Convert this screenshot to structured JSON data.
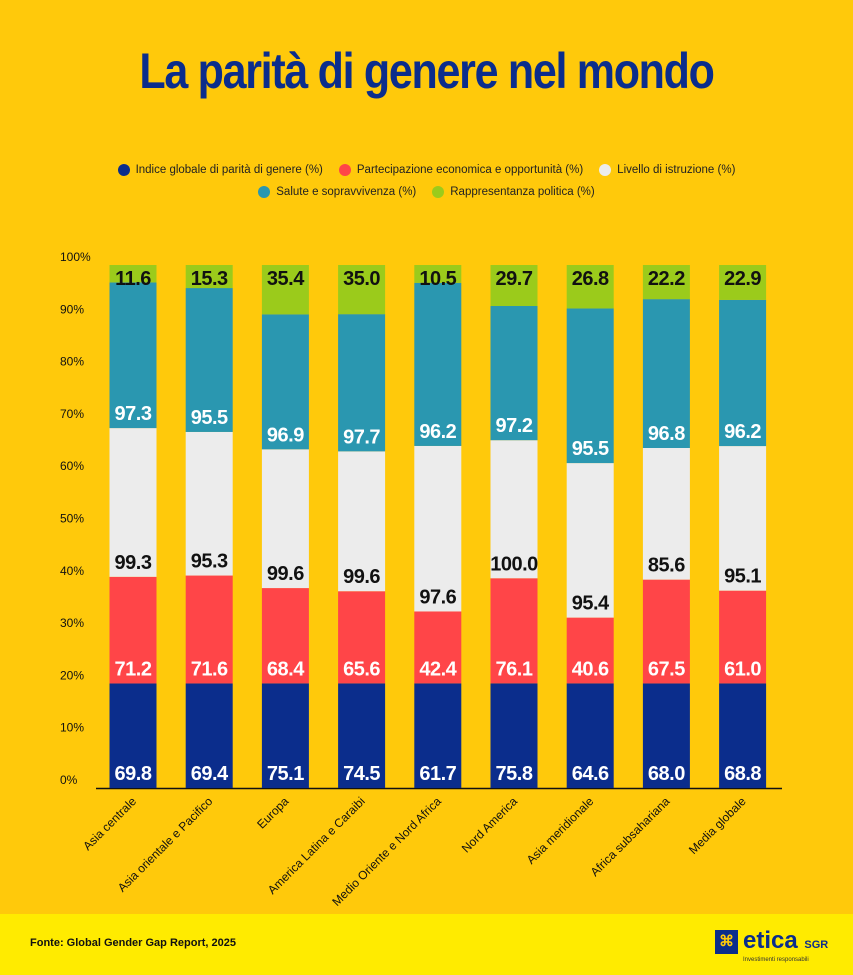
{
  "title": "La parità di genere nel mondo",
  "footer": {
    "source": "Fonte: Global Gender Gap Report, 2025",
    "logo_text": "etica",
    "logo_suffix": "SGR",
    "logo_tagline": "Investimenti responsabili"
  },
  "chart_data": {
    "type": "bar",
    "stacked": "percent",
    "title": "La parità di genere nel mondo",
    "ylim": [
      0,
      100
    ],
    "yticks": [
      "0%",
      "10%",
      "20%",
      "30%",
      "40%",
      "50%",
      "60%",
      "70%",
      "80%",
      "90%",
      "100%"
    ],
    "grid": false,
    "legend_position": "top",
    "categories": [
      "Asia centrale",
      "Asia orientale e Pacifico",
      "Europa",
      "America Latina e Caraibi",
      "Medio Oriente e Nord Africa",
      "Nord America",
      "Asia meridionale",
      "Africa subsahariana",
      "Media globale"
    ],
    "series": [
      {
        "name": "Indice globale di parità di genere (%)",
        "color": "#0B2D8C",
        "label_color": "#FFFFFF",
        "values": [
          69.8,
          69.4,
          75.1,
          74.5,
          61.7,
          75.8,
          64.6,
          68.0,
          68.8
        ]
      },
      {
        "name": "Partecipazione economica e opportunità (%)",
        "color": "#FF4548",
        "label_color": "#FFFFFF",
        "values": [
          71.2,
          71.6,
          68.4,
          65.6,
          42.4,
          76.1,
          40.6,
          67.5,
          61.0
        ]
      },
      {
        "name": "Livello di istruzione (%)",
        "color": "#ECECEC",
        "label_color": "#111111",
        "values": [
          99.3,
          95.3,
          99.6,
          99.6,
          97.6,
          100.0,
          95.4,
          85.6,
          95.1
        ]
      },
      {
        "name": "Salute e sopravvivenza (%)",
        "color": "#2A97B0",
        "label_color": "#FFFFFF",
        "values": [
          97.3,
          95.5,
          96.9,
          97.7,
          96.2,
          97.2,
          95.5,
          96.8,
          96.2
        ]
      },
      {
        "name": "Rappresentanza politica (%)",
        "color": "#9BCB1B",
        "label_color": "#111111",
        "values": [
          11.6,
          15.3,
          35.4,
          35.0,
          10.5,
          29.7,
          26.8,
          22.2,
          22.9
        ]
      }
    ]
  }
}
